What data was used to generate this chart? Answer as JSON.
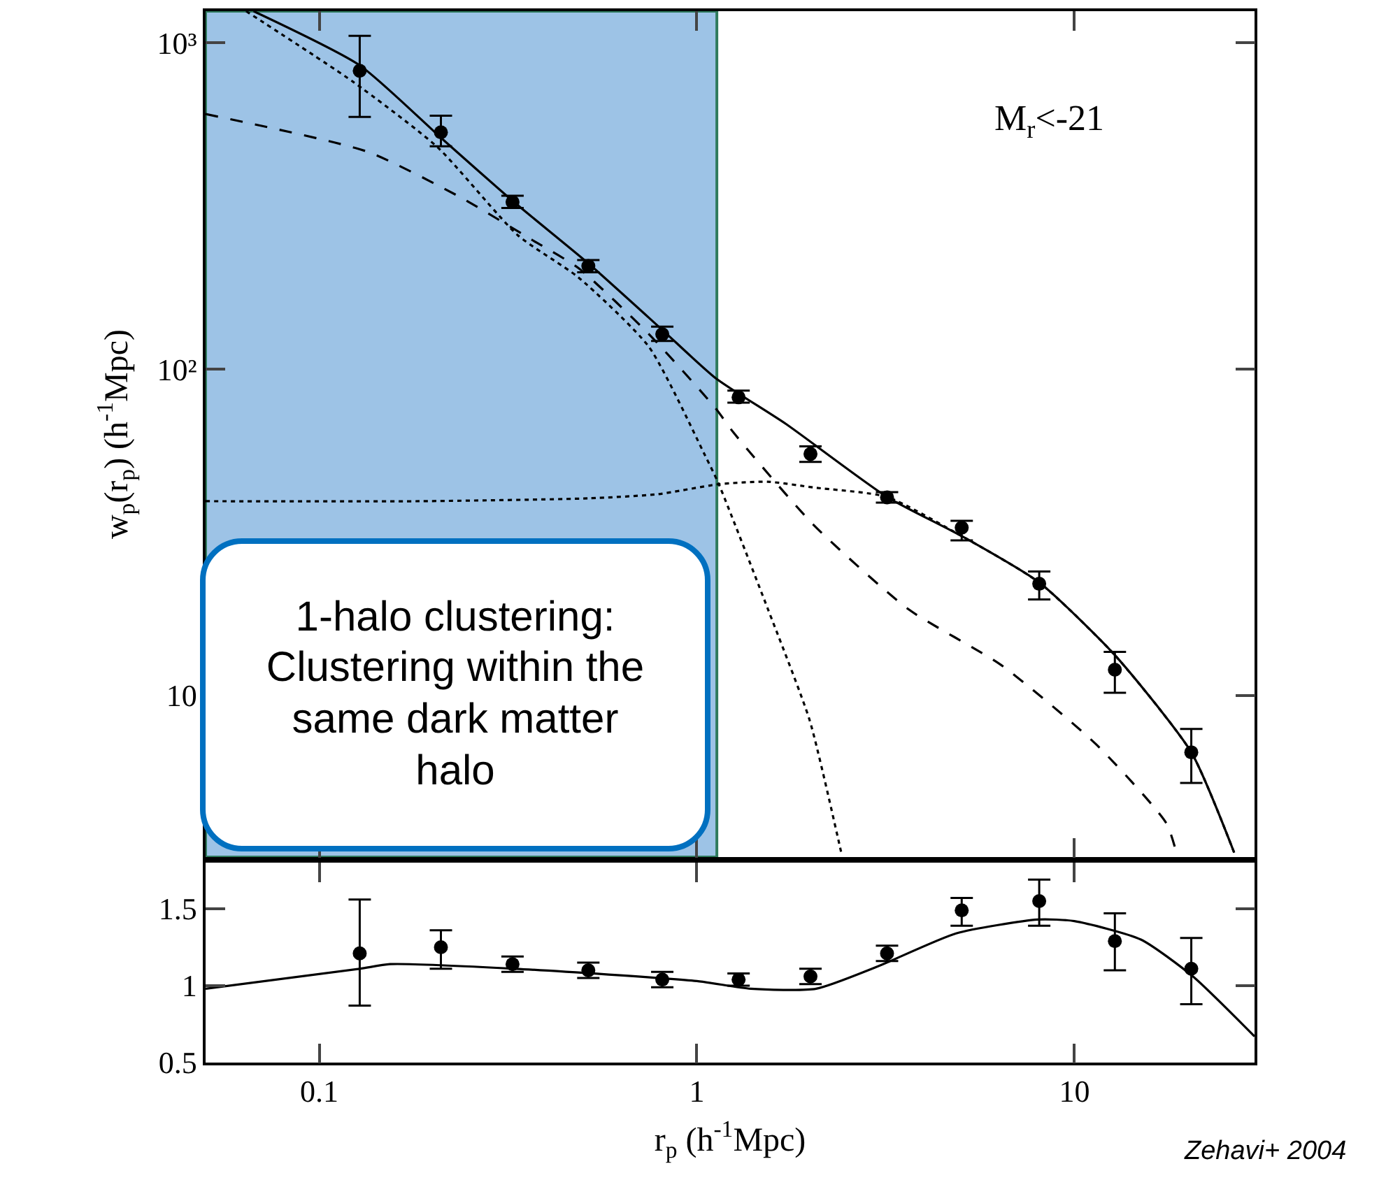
{
  "chart_data": [
    {
      "type": "scatter",
      "ylabel": "w$_{p}$(r$_{p}$) (h$^{-1}$Mpc)",
      "log": "xy",
      "xlim": [
        0.05,
        30
      ],
      "xticks": [
        0.1,
        1,
        10
      ],
      "ylim": [
        3.2,
        1250
      ],
      "yticks": [
        {
          "value": 10,
          "label": "10"
        },
        {
          "value": 100,
          "label": "10²"
        },
        {
          "value": 1000,
          "label": "10³"
        }
      ],
      "tick_labels": "y",
      "annotations": [
        "M$_{r}$<-21",
        "1-halo clustering: Clustering within the same dark matter halo"
      ],
      "bands": [
        {
          "axis": "x",
          "from": 0.05,
          "to": 1.13,
          "color": "#9dc3e6"
        }
      ],
      "series": [
        {
          "type": "scatter",
          "color": "#000000",
          "marker": "circle",
          "x": [
            0.128,
            0.21,
            0.325,
            0.516,
            0.81,
            1.29,
            2.0,
            3.19,
            5.03,
            8.07,
            12.8,
            20.4
          ],
          "values": [
            821,
            532,
            325,
            207,
            128,
            82,
            55,
            40.5,
            32.7,
            22,
            12,
            6.7
          ],
          "errors": [
            [
              593,
              1050
            ],
            [
              482,
              598
            ],
            [
              312,
              340
            ],
            [
              198,
              216
            ],
            [
              122,
              135
            ],
            [
              79,
              86
            ],
            [
              52,
              58
            ],
            [
              39,
              42
            ],
            [
              29.9,
              34.3
            ],
            [
              19.7,
              24
            ],
            [
              10.2,
              13.6
            ],
            [
              5.4,
              7.9
            ]
          ]
        },
        {
          "type": "line",
          "color": "#000000",
          "line_style": "solid",
          "x": [
            0.067,
            0.128,
            0.21,
            0.325,
            0.516,
            0.81,
            1.12,
            1.72,
            3.19,
            5.03,
            8.07,
            12.8,
            20.4,
            26.5
          ],
          "values": [
            1250,
            853,
            512,
            328,
            211,
            132,
            94,
            68,
            40.6,
            30.8,
            22.2,
            13.3,
            6.7,
            3.3
          ]
        },
        {
          "type": "line",
          "color": "#000000",
          "line_style": "dotted",
          "x": [
            0.064,
            0.123,
            0.206,
            0.336,
            0.486,
            0.747,
            1.05,
            1.14,
            1.54,
            1.99,
            2.36,
            2.42
          ],
          "values": [
            1250,
            759,
            478,
            257,
            191,
            117,
            54.6,
            44.8,
            18.5,
            8.4,
            3.7,
            3.25
          ]
        },
        {
          "type": "line",
          "color": "#000000",
          "line_style": "dotted",
          "x": [
            0.05,
            0.184,
            0.516,
            0.79,
            1.14,
            1.54,
            2.04,
            3.19,
            5.03,
            8.07,
            12.8,
            20.4,
            26.5
          ],
          "values": [
            39.4,
            39.4,
            40.2,
            41.4,
            44.4,
            45.2,
            43.4,
            40.6,
            30.8,
            22.2,
            13.3,
            6.7,
            3.3
          ]
        },
        {
          "type": "line",
          "color": "#000000",
          "line_style": "dashed",
          "x": [
            0.05,
            0.134,
            0.238,
            0.366,
            0.486,
            0.747,
            1.12,
            1.25,
            2.04,
            3.63,
            6.4,
            11.4,
            17.5,
            18.7
          ],
          "values": [
            605,
            464,
            335,
            249,
            204,
            128,
            76,
            64,
            33.3,
            18.4,
            12.4,
            7.1,
            4.07,
            3.25
          ]
        }
      ]
    },
    {
      "type": "scatter",
      "xlabel": "r$_{p}$ (h$^{-1}$Mpc)",
      "log": "x",
      "xlim": [
        0.05,
        30
      ],
      "xticks": [
        0.1,
        1,
        10
      ],
      "ylim": [
        0.5,
        1.8
      ],
      "yticks": [
        0.5,
        1,
        1.5
      ],
      "annotations": [
        "Zehavi+ 2004"
      ],
      "series": [
        {
          "type": "scatter",
          "color": "#000000",
          "marker": "circle",
          "x": [
            0.128,
            0.21,
            0.325,
            0.516,
            0.81,
            1.29,
            2.0,
            3.19,
            5.03,
            8.07,
            12.8,
            20.4
          ],
          "values": [
            1.21,
            1.25,
            1.14,
            1.1,
            1.04,
            1.04,
            1.06,
            1.21,
            1.49,
            1.55,
            1.29,
            1.11
          ],
          "errors": [
            [
              0.87,
              1.56
            ],
            [
              1.11,
              1.36
            ],
            [
              1.09,
              1.19
            ],
            [
              1.05,
              1.15
            ],
            [
              0.99,
              1.09
            ],
            [
              1.0,
              1.08
            ],
            [
              1.01,
              1.11
            ],
            [
              1.16,
              1.26
            ],
            [
              1.39,
              1.57
            ],
            [
              1.39,
              1.69
            ],
            [
              1.1,
              1.47
            ],
            [
              0.88,
              1.31
            ]
          ]
        },
        {
          "type": "line",
          "color": "#000000",
          "line_style": "solid",
          "x": [
            0.05,
            0.128,
            0.154,
            0.33,
            1.0,
            1.39,
            2.07,
            2.98,
            4.86,
            8.0,
            10,
            15,
            20.6,
            30
          ],
          "values": [
            0.98,
            1.11,
            1.14,
            1.11,
            1.03,
            0.98,
            0.98,
            1.12,
            1.34,
            1.43,
            1.42,
            1.3,
            1.06,
            0.67
          ]
        }
      ]
    }
  ]
}
